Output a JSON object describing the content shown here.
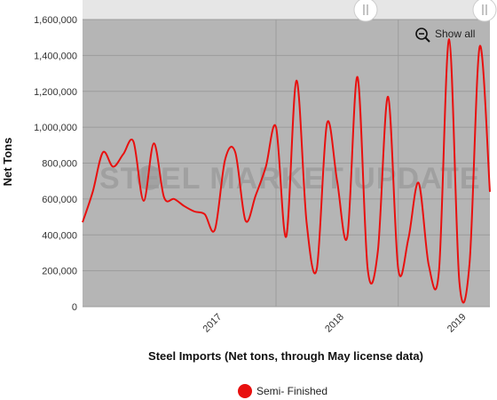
{
  "chart_data": {
    "type": "line",
    "xlabel": "Steel Imports (Net tons, through May license data)",
    "ylabel": "Net Tons",
    "ylim": [
      0,
      1600000
    ],
    "y_ticks": [
      "0",
      "200,000",
      "400,000",
      "600,000",
      "800,000",
      "1,000,000",
      "1,200,000",
      "1,400,000",
      "1,600,000"
    ],
    "x_tick_labels": [
      "2017",
      "2018",
      "2019"
    ],
    "grid": true,
    "legend_position": "bottom-center",
    "watermark": "STEEL MARKET UPDATE",
    "series": [
      {
        "name": "Semi- Finished",
        "color": "#e8100f",
        "points": [
          [
            "2016-06",
            470000
          ],
          [
            "2016-07",
            640000
          ],
          [
            "2016-08",
            860000
          ],
          [
            "2016-09",
            780000
          ],
          [
            "2016-10",
            850000
          ],
          [
            "2016-11",
            920000
          ],
          [
            "2016-12",
            590000
          ],
          [
            "2017-01",
            910000
          ],
          [
            "2017-02",
            610000
          ],
          [
            "2017-03",
            600000
          ],
          [
            "2017-04",
            560000
          ],
          [
            "2017-05",
            530000
          ],
          [
            "2017-06",
            515000
          ],
          [
            "2017-07",
            430000
          ],
          [
            "2017-08",
            820000
          ],
          [
            "2017-09",
            860000
          ],
          [
            "2017-10",
            480000
          ],
          [
            "2017-11",
            620000
          ],
          [
            "2017-12",
            780000
          ],
          [
            "2018-01",
            1000000
          ],
          [
            "2018-02",
            390000
          ],
          [
            "2018-03",
            1260000
          ],
          [
            "2018-04",
            470000
          ],
          [
            "2018-05",
            210000
          ],
          [
            "2018-06",
            1020000
          ],
          [
            "2018-07",
            700000
          ],
          [
            "2018-08",
            390000
          ],
          [
            "2018-09",
            1280000
          ],
          [
            "2018-10",
            210000
          ],
          [
            "2018-11",
            310000
          ],
          [
            "2018-12",
            1170000
          ],
          [
            "2019-01",
            210000
          ],
          [
            "2019-02",
            380000
          ],
          [
            "2019-03",
            690000
          ],
          [
            "2019-04",
            230000
          ],
          [
            "2019-05",
            200000
          ],
          [
            "2019-06",
            1490000
          ],
          [
            "2019-07",
            140000
          ],
          [
            "2019-08",
            240000
          ],
          [
            "2019-09",
            1450000
          ],
          [
            "2019-10",
            640000
          ]
        ]
      }
    ]
  },
  "zoom_control": {
    "label": "Show all",
    "icon": "zoom-out-icon"
  },
  "navigator_handles": {
    "left": "handle-left",
    "right": "handle-right"
  },
  "colors": {
    "plot_background": "#b5b5b5",
    "series": "#e8100f",
    "grid": "#9c9c9c"
  }
}
